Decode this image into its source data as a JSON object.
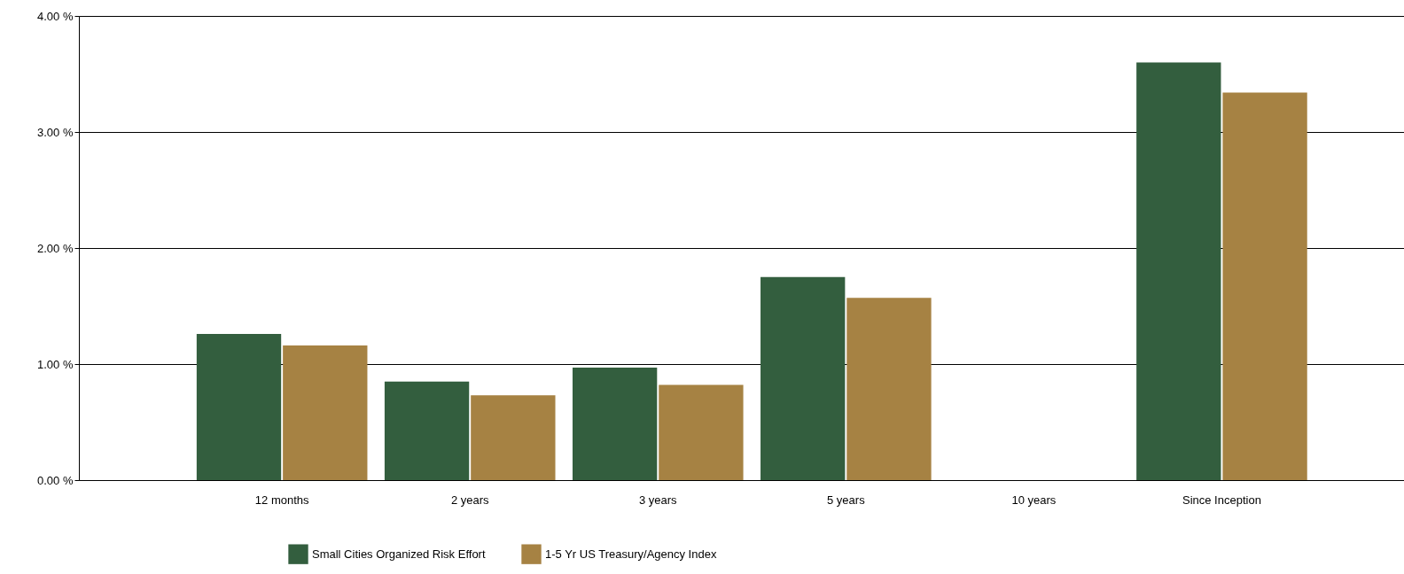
{
  "chart_data": {
    "type": "bar",
    "categories": [
      "12 months",
      "2 years",
      "3 years",
      "5 years",
      "10 years",
      "Since Inception"
    ],
    "series": [
      {
        "name": "Small Cities Organized Risk Effort",
        "color": "#335e3e",
        "values": [
          1.26,
          0.85,
          0.97,
          1.75,
          null,
          3.6
        ]
      },
      {
        "name": "1-5 Yr US Treasury/Agency Index",
        "color": "#a68243",
        "values": [
          1.16,
          0.73,
          0.82,
          1.57,
          null,
          3.34
        ]
      }
    ],
    "ylim": [
      0,
      4
    ],
    "yticks": [
      {
        "value": 0,
        "label": "0.00 %"
      },
      {
        "value": 1,
        "label": "1.00 %"
      },
      {
        "value": 2,
        "label": "2.00 %"
      },
      {
        "value": 3,
        "label": "3.00 %"
      },
      {
        "value": 4,
        "label": "4.00 %"
      }
    ],
    "grid": "y",
    "legend": "bottom"
  }
}
